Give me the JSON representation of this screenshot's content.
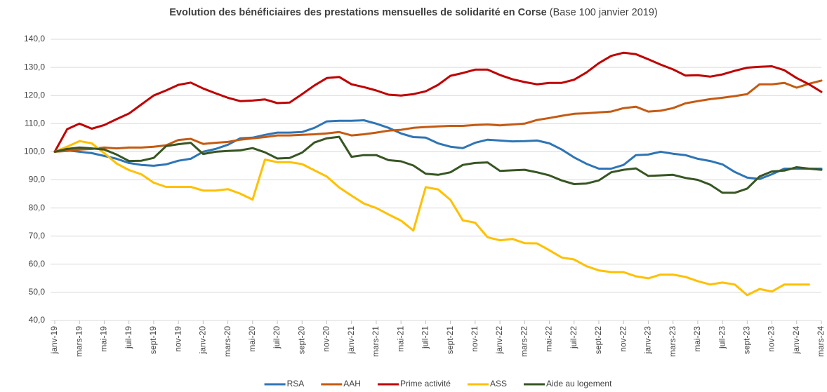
{
  "chart_data": {
    "type": "line",
    "title": "Evolution des bénéficiaires des prestations mensuelles de solidarité en Corse",
    "subtitle": "(Base 100 janvier 2019)",
    "categories": [
      "janv-19",
      null,
      "mars-19",
      null,
      "mai-19",
      null,
      "juil-19",
      null,
      "sept-19",
      null,
      "nov-19",
      null,
      "janv-20",
      null,
      "mars-20",
      null,
      "mai-20",
      null,
      "juil-20",
      null,
      "sept-20",
      null,
      "nov-20",
      null,
      "janv-21",
      null,
      "mars-21",
      null,
      "mai-21",
      null,
      "juil-21",
      null,
      "sept-21",
      null,
      "nov-21",
      null,
      "janv-22",
      null,
      "mars-22",
      null,
      "mai-22",
      null,
      "juil-22",
      null,
      "sept-22",
      null,
      "nov-22",
      null,
      "janv-23",
      null,
      "mars-23",
      null,
      "mai-23",
      null,
      "juil-23",
      null,
      "sept-23",
      null,
      "nov-23",
      null,
      "janv-24",
      null,
      "mars-24"
    ],
    "series": [
      {
        "name": "RSA",
        "color": "#2e75b6",
        "values": [
          100,
          100.5,
          100,
          99.5,
          98.5,
          97.5,
          96,
          95.3,
          95,
          95.5,
          96.8,
          97.5,
          100,
          101,
          102.5,
          104.8,
          105,
          106,
          106.8,
          106.8,
          107,
          108.5,
          110.8,
          111,
          111,
          111.2,
          110,
          108.5,
          106.5,
          105.2,
          105,
          103,
          101.8,
          101.3,
          103.2,
          104.3,
          104,
          103.7,
          103.8,
          104,
          103,
          100.8,
          98,
          95.7,
          94,
          94,
          95.3,
          98.8,
          99,
          100,
          99.3,
          98.8,
          97.5,
          96.7,
          95.5,
          92.8,
          90.8,
          90.3,
          92,
          94,
          94,
          94,
          94
        ]
      },
      {
        "name": "AAH",
        "color": "#c55a11",
        "values": [
          100,
          100.3,
          100.8,
          101,
          101.5,
          101.2,
          101.5,
          101.5,
          101.8,
          102.3,
          104.2,
          104.6,
          102.8,
          103.2,
          103.5,
          104.3,
          104.8,
          105.2,
          105.8,
          105.8,
          106,
          106.2,
          106.5,
          107,
          105.8,
          106.2,
          106.8,
          107.5,
          107.8,
          108.5,
          108.8,
          109,
          109.2,
          109.2,
          109.5,
          109.7,
          109.4,
          109.7,
          110,
          111.3,
          112,
          112.8,
          113.5,
          113.7,
          114,
          114.3,
          115.5,
          116,
          114.3,
          114.6,
          115.5,
          117.2,
          118,
          118.7,
          119.2,
          119.8,
          120.5,
          124,
          124,
          124.5,
          122.8,
          124.2,
          125.3
        ]
      },
      {
        "name": "Prime activité",
        "color": "#c00000",
        "values": [
          100,
          108,
          110,
          108.2,
          109.5,
          111.6,
          113.6,
          116.8,
          120,
          121.8,
          123.8,
          124.6,
          122.5,
          120.8,
          119.2,
          118,
          118.2,
          118.6,
          117.3,
          117.5,
          120.5,
          123.6,
          126.2,
          126.6,
          124,
          123,
          121.8,
          120.3,
          120,
          120.5,
          121.5,
          123.8,
          127,
          128,
          129.2,
          129.2,
          127.3,
          125.8,
          124.8,
          124,
          124.5,
          124.5,
          125.6,
          128.2,
          131.5,
          134.1,
          135.2,
          134.7,
          132.9,
          131,
          129.3,
          127.1,
          127.2,
          126.7,
          127.5,
          128.8,
          129.9,
          130.2,
          130.4,
          129,
          126.2,
          124,
          121.3
        ]
      },
      {
        "name": "ASS",
        "color": "#ffc000",
        "values": [
          100,
          101.8,
          103.8,
          103,
          99.5,
          95.8,
          93.5,
          92,
          89,
          87.5,
          87.5,
          87.5,
          86.2,
          86.2,
          86.7,
          85.1,
          83,
          97.2,
          96.3,
          96.3,
          95.6,
          93.4,
          91.2,
          87.3,
          84.4,
          81.6,
          80,
          77.7,
          75.5,
          72,
          87.4,
          86.6,
          82.9,
          75.6,
          74.8,
          69.6,
          68.5,
          69,
          67.5,
          67.4,
          65,
          62.4,
          61.7,
          59.3,
          57.8,
          57.2,
          57.2,
          55.7,
          55,
          56.3,
          56.3,
          55.5,
          54,
          52.8,
          53.5,
          52.8,
          49,
          51.2,
          50.3,
          52.8,
          52.8,
          52.8,
          null
        ]
      },
      {
        "name": "Aide au logement",
        "color": "#375623",
        "values": [
          100,
          101,
          101.5,
          101.2,
          100.8,
          99,
          96.7,
          96.8,
          97.8,
          102,
          102.7,
          103.2,
          99.2,
          100,
          100.3,
          100.5,
          101.3,
          99.8,
          97.6,
          97.8,
          99.7,
          103.3,
          104.8,
          105.3,
          98.2,
          98.8,
          98.8,
          97,
          96.6,
          95.1,
          92.2,
          91.8,
          92.7,
          95.3,
          96,
          96.2,
          93.2,
          93.4,
          93.6,
          92.7,
          91.6,
          89.8,
          88.5,
          88.7,
          89.8,
          92.7,
          93.6,
          94.1,
          91.4,
          91.6,
          91.8,
          90.7,
          90,
          88.3,
          85.4,
          85.4,
          86.9,
          91.2,
          93,
          93.3,
          94.5,
          94,
          93.6
        ]
      }
    ],
    "ylim": [
      40,
      140
    ],
    "yticks": [
      {
        "value": 40,
        "label": "40,0"
      },
      {
        "value": 50,
        "label": "50,0"
      },
      {
        "value": 60,
        "label": "60,0"
      },
      {
        "value": 70,
        "label": "70,0"
      },
      {
        "value": 80,
        "label": "80,0"
      },
      {
        "value": 90,
        "label": "90,0"
      },
      {
        "value": 100,
        "label": "100,0"
      },
      {
        "value": 110,
        "label": "110,0"
      },
      {
        "value": 120,
        "label": "120,0"
      },
      {
        "value": 130,
        "label": "130,0"
      },
      {
        "value": 140,
        "label": "140,0"
      }
    ],
    "grid": true,
    "legend": "bottom"
  }
}
